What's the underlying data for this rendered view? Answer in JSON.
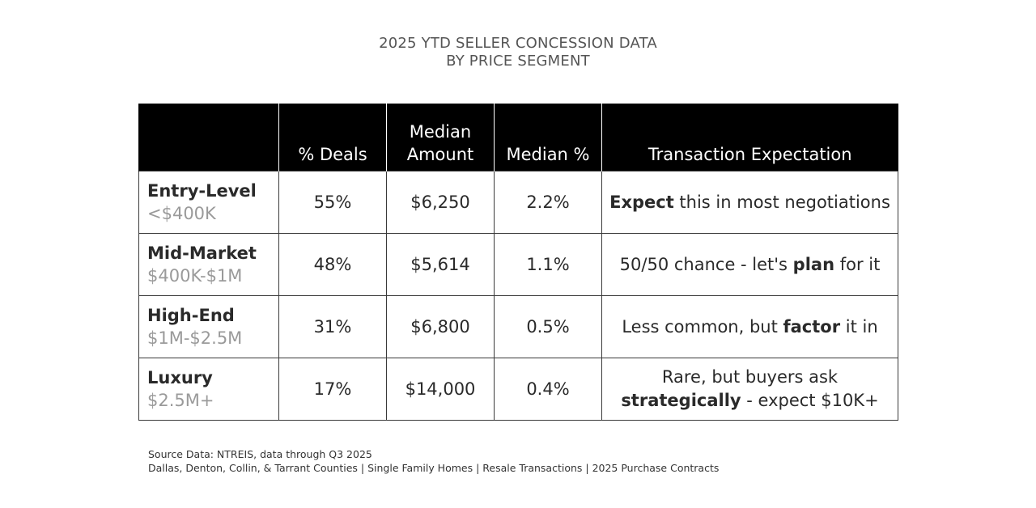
{
  "chart_data": {
    "type": "table",
    "title_line1": "2025 YTD SELLER CONCESSION DATA",
    "title_line2": "BY PRICE SEGMENT",
    "columns": [
      "",
      "% Deals",
      "Median Amount",
      "Median %",
      "Transaction Expectation"
    ],
    "header": {
      "col0": "",
      "col1": "% Deals",
      "col2_line1": "Median",
      "col2_line2": "Amount",
      "col3": "Median %",
      "col4": "Transaction Expectation"
    },
    "rows": [
      {
        "segment": "Entry-Level",
        "range": "<$400K",
        "pct_deals": "55%",
        "median_amount": "$6,250",
        "median_pct": "2.2%",
        "expectation": {
          "pre": "",
          "bold": "Expect",
          "post": " this in most negotiations"
        }
      },
      {
        "segment": "Mid-Market",
        "range": "$400K-$1M",
        "pct_deals": "48%",
        "median_amount": "$5,614",
        "median_pct": "1.1%",
        "expectation": {
          "pre": "50/50 chance - let's ",
          "bold": "plan",
          "post": " for it"
        }
      },
      {
        "segment": "High-End",
        "range": "$1M-$2.5M",
        "pct_deals": "31%",
        "median_amount": "$6,800",
        "median_pct": "0.5%",
        "expectation": {
          "pre": "Less common, but ",
          "bold": "factor",
          "post": " it in"
        }
      },
      {
        "segment": "Luxury",
        "range": "$2.5M+",
        "pct_deals": "17%",
        "median_amount": "$14,000",
        "median_pct": "0.4%",
        "expectation": {
          "line1": "Rare, but buyers ask",
          "bold": "strategically",
          "post": " - expect $10K+"
        }
      }
    ]
  },
  "colors": {
    "header_bg": "#000000",
    "header_text": "#ffffff",
    "range_text": "#9a9a9a",
    "title_text": "#555555"
  },
  "footer": {
    "line1": "Source Data:  NTREIS, data through Q3 2025",
    "line2": "Dallas, Denton, Collin, & Tarrant Counties | Single Family Homes | Resale Transactions | 2025 Purchase Contracts"
  }
}
